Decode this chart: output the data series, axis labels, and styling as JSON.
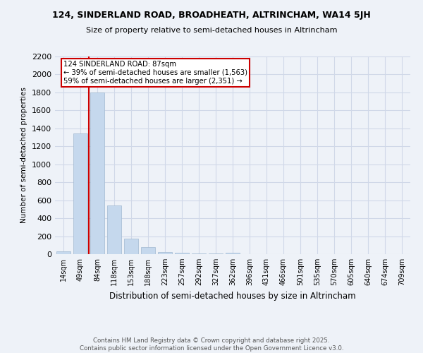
{
  "title1": "124, SINDERLAND ROAD, BROADHEATH, ALTRINCHAM, WA14 5JH",
  "title2": "Size of property relative to semi-detached houses in Altrincham",
  "xlabel": "Distribution of semi-detached houses by size in Altrincham",
  "ylabel": "Number of semi-detached properties",
  "categories": [
    "14sqm",
    "49sqm",
    "84sqm",
    "118sqm",
    "153sqm",
    "188sqm",
    "223sqm",
    "257sqm",
    "292sqm",
    "327sqm",
    "362sqm",
    "396sqm",
    "431sqm",
    "466sqm",
    "501sqm",
    "535sqm",
    "570sqm",
    "605sqm",
    "640sqm",
    "674sqm",
    "709sqm"
  ],
  "values": [
    30,
    1340,
    1800,
    540,
    175,
    75,
    25,
    15,
    10,
    5,
    15,
    3,
    2,
    1,
    1,
    0,
    0,
    0,
    0,
    0,
    0
  ],
  "bar_color": "#c5d8ed",
  "bar_edge_color": "#a0b8d0",
  "property_bar_index": 2,
  "annotation_title": "124 SINDERLAND ROAD: 87sqm",
  "annotation_line1": "← 39% of semi-detached houses are smaller (1,563)",
  "annotation_line2": "59% of semi-detached houses are larger (2,351) →",
  "vline_color": "#cc0000",
  "annotation_box_color": "#ffffff",
  "annotation_box_edge": "#cc0000",
  "ylim": [
    0,
    2200
  ],
  "yticks": [
    0,
    200,
    400,
    600,
    800,
    1000,
    1200,
    1400,
    1600,
    1800,
    2000,
    2200
  ],
  "grid_color": "#d0d8e8",
  "background_color": "#eef2f8",
  "footer1": "Contains HM Land Registry data © Crown copyright and database right 2025.",
  "footer2": "Contains public sector information licensed under the Open Government Licence v3.0."
}
